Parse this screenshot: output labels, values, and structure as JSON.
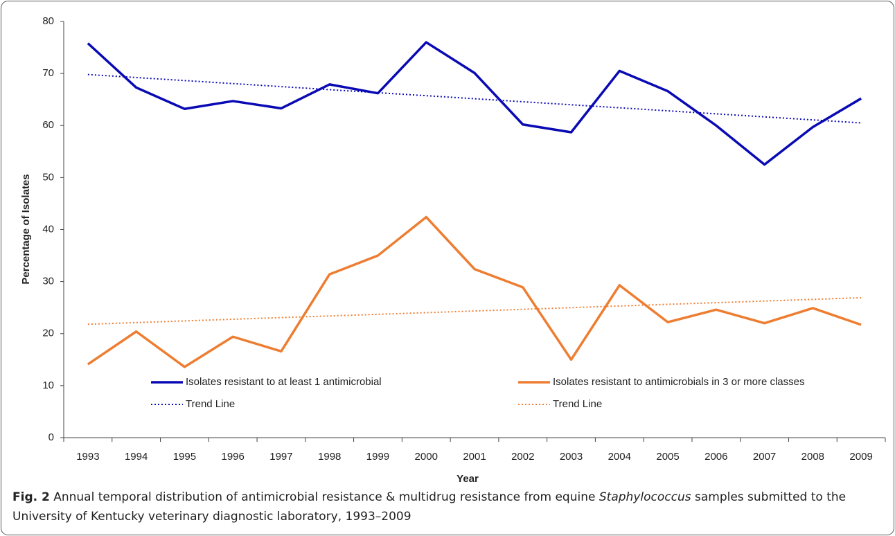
{
  "chart_data": {
    "type": "line",
    "categories": [
      "1993",
      "1994",
      "1995",
      "1996",
      "1997",
      "1998",
      "1999",
      "2000",
      "2001",
      "2002",
      "2003",
      "2004",
      "2005",
      "2006",
      "2007",
      "2008",
      "2009"
    ],
    "series": [
      {
        "name": "Isolates resistant to at least 1 antimicrobial",
        "color": "#0a0ab4",
        "line_style": "solid",
        "values": [
          75.8,
          67.3,
          63.2,
          64.7,
          63.3,
          67.9,
          66.2,
          76.0,
          70.1,
          60.2,
          58.7,
          70.5,
          66.6,
          60.0,
          52.5,
          59.7,
          65.2
        ]
      },
      {
        "name": "Isolates resistant to antimicrobials in 3 or more classes",
        "color": "#ed7d31",
        "line_style": "solid",
        "values": [
          14.1,
          20.4,
          13.6,
          19.4,
          16.6,
          31.4,
          35.0,
          42.4,
          32.4,
          28.9,
          15.0,
          29.3,
          22.2,
          24.6,
          22.0,
          24.9,
          21.7
        ]
      },
      {
        "name": "Trend Line",
        "color": "#0a0ab4",
        "line_style": "dotted",
        "values": [
          69.8,
          69.22,
          68.64,
          68.06,
          67.48,
          66.89,
          66.31,
          65.73,
          65.15,
          64.57,
          63.99,
          63.41,
          62.83,
          62.24,
          61.66,
          61.08,
          60.5
        ]
      },
      {
        "name": "Trend Line",
        "color": "#ed7d31",
        "line_style": "dotted",
        "values": [
          21.8,
          22.12,
          22.44,
          22.76,
          23.08,
          23.39,
          23.71,
          24.03,
          24.35,
          24.67,
          24.99,
          25.31,
          25.63,
          25.94,
          26.26,
          26.58,
          26.9
        ]
      }
    ],
    "x_label": "Year",
    "y_label": "Percentage of Isolates",
    "ylim": [
      0,
      80
    ],
    "yticks": [
      0,
      10,
      20,
      30,
      40,
      50,
      60,
      70,
      80
    ],
    "grid": false
  },
  "caption": {
    "label": "Fig. 2",
    "text_before": " Annual temporal distribution of antimicrobial resistance & multidrug resistance from equine ",
    "italic": "Staphylococcus",
    "text_after": " samples submitted to the University of Kentucky veterinary diagnostic laboratory, 1993–2009"
  }
}
